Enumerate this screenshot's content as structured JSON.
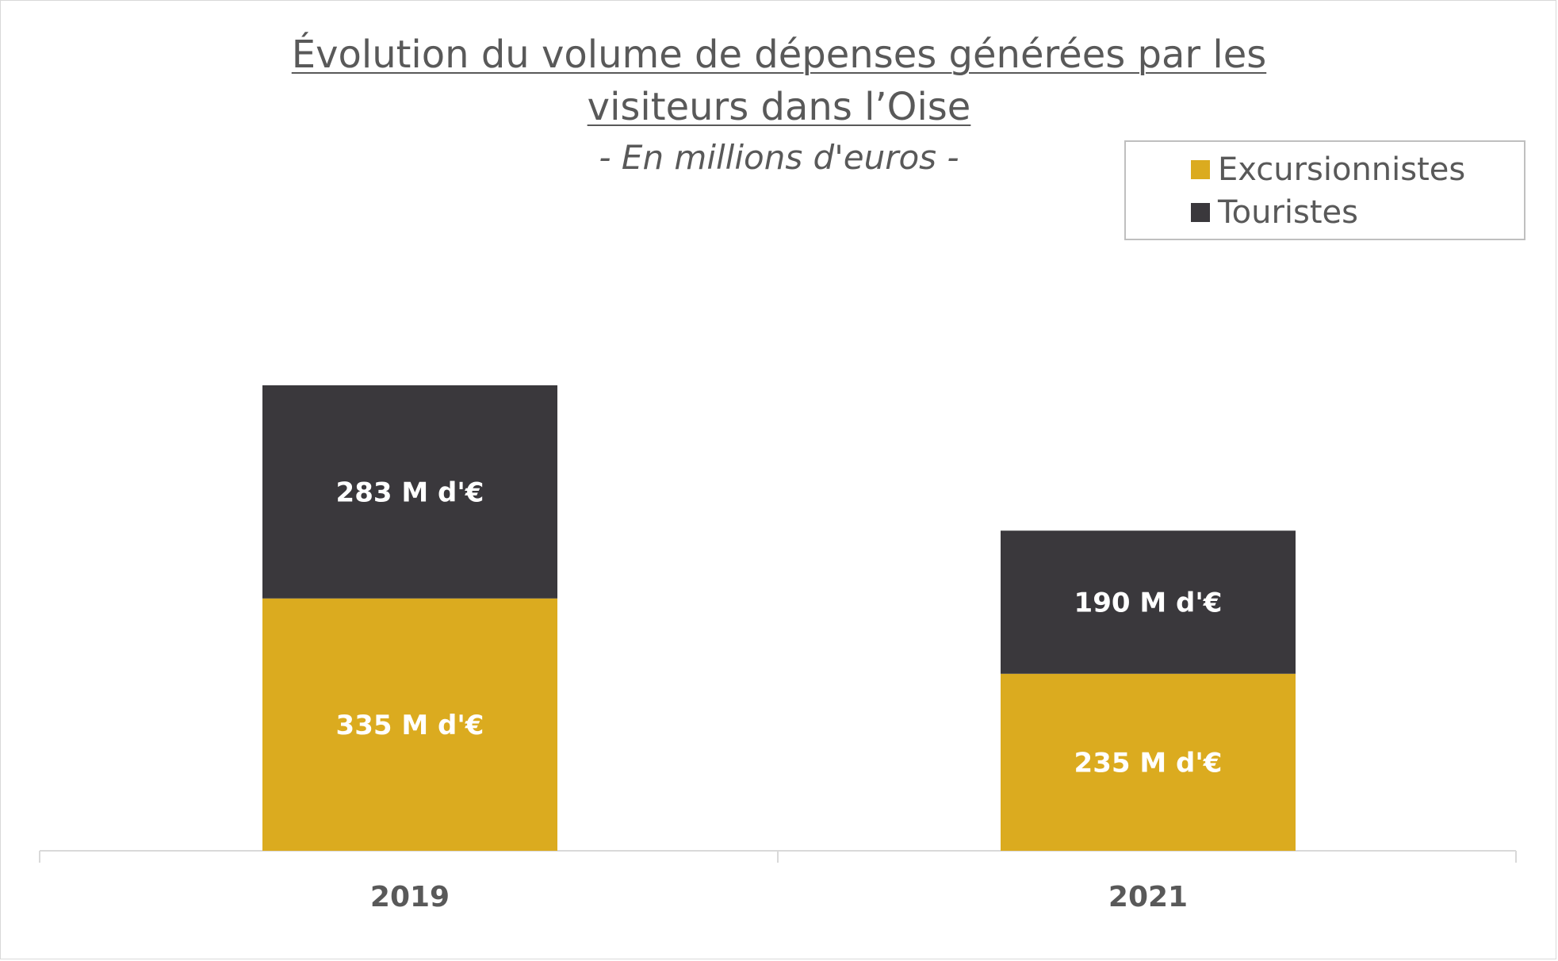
{
  "chart_data": {
    "type": "bar",
    "stacked": true,
    "title_line1": "Évolution du volume de dépenses générées par les",
    "title_line2": "visiteurs dans l’Oise",
    "subtitle": "- En millions d'euros -",
    "categories": [
      "2019",
      "2021"
    ],
    "series": [
      {
        "name": "Excursionnistes",
        "color": "#dbab1f",
        "values": [
          335,
          235
        ],
        "labels": [
          "335 M d'€",
          "235 M d'€"
        ]
      },
      {
        "name": "Touristes",
        "color": "#3a383c",
        "values": [
          283,
          190
        ],
        "labels": [
          "283 M d'€",
          "190 M d'€"
        ]
      }
    ],
    "ylim": [
      0,
      700
    ],
    "legend_position": "top-right",
    "grid": false
  }
}
